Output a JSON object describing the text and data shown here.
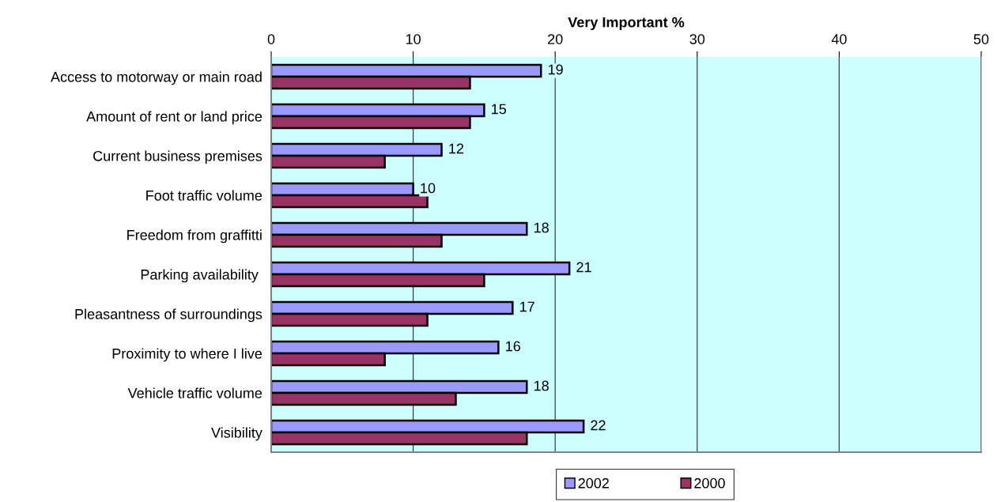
{
  "chart_data": {
    "type": "bar",
    "orientation": "horizontal",
    "xlabel": "Very Important %",
    "categories": [
      "Access to motorway or main road",
      "Amount of rent or land price",
      "Current business premises",
      "Foot traffic volume",
      "Freedom from graffitti",
      "Parking availability ",
      "Pleasantness of surroundings",
      "Proximity to where I live",
      "Vehicle traffic volume",
      "Visibility"
    ],
    "series": [
      {
        "name": "2002",
        "color": "#9999ff",
        "values": [
          19,
          15,
          12,
          10,
          18,
          21,
          17,
          16,
          18,
          22
        ],
        "value_labels": [
          "19",
          "15",
          "12",
          "10",
          "18",
          "21",
          "17",
          "16",
          "18",
          "22"
        ]
      },
      {
        "name": "2000",
        "color": "#993366",
        "values": [
          14,
          14,
          8,
          11,
          12,
          15,
          11,
          8,
          13,
          18
        ]
      }
    ],
    "xlim": [
      0,
      50
    ],
    "xticks": [
      0,
      10,
      20,
      30,
      40,
      50
    ],
    "grid": "x",
    "legend": "bottom"
  }
}
